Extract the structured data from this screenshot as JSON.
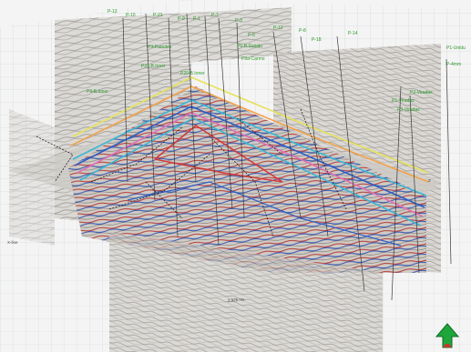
{
  "viewer": {
    "well_labels": [
      "P-13",
      "P-10",
      "P-21",
      "P-9",
      "P-1",
      "P-7",
      "P-3",
      "P-12",
      "P-8",
      "P-18",
      "P-14",
      "P-4mm",
      "P-5",
      "P3-Paredes",
      "P37-B.Ioner",
      "P20-B.Ioner",
      "P6-B.Saindo",
      "P8a-Carmo",
      "P3-B.Ioner",
      "P1-Viradas",
      "P2-Viradas",
      "P3-Viradas",
      "P1-Unidu"
    ],
    "axis_label_bottom": "2,925 ms",
    "axis_label_left": "X-line",
    "axis_label_right": "Z"
  },
  "colors": {
    "background": "#f4f4f4",
    "grid": "#c7cbd0",
    "panel": "#cfcfcf",
    "horizon_orange": "#f3a24a",
    "horizon_yellow": "#e6e25a",
    "horizon_cyan": "#39b7d6",
    "horizon_blue": "#2b5ec7",
    "horizon_red": "#d33a3a",
    "horizon_pink": "#e06fb3",
    "well_label": "#2a9a2a",
    "orientation_arrow": "#1fa63a"
  },
  "icons": {
    "orientation": "north-arrow-icon"
  }
}
